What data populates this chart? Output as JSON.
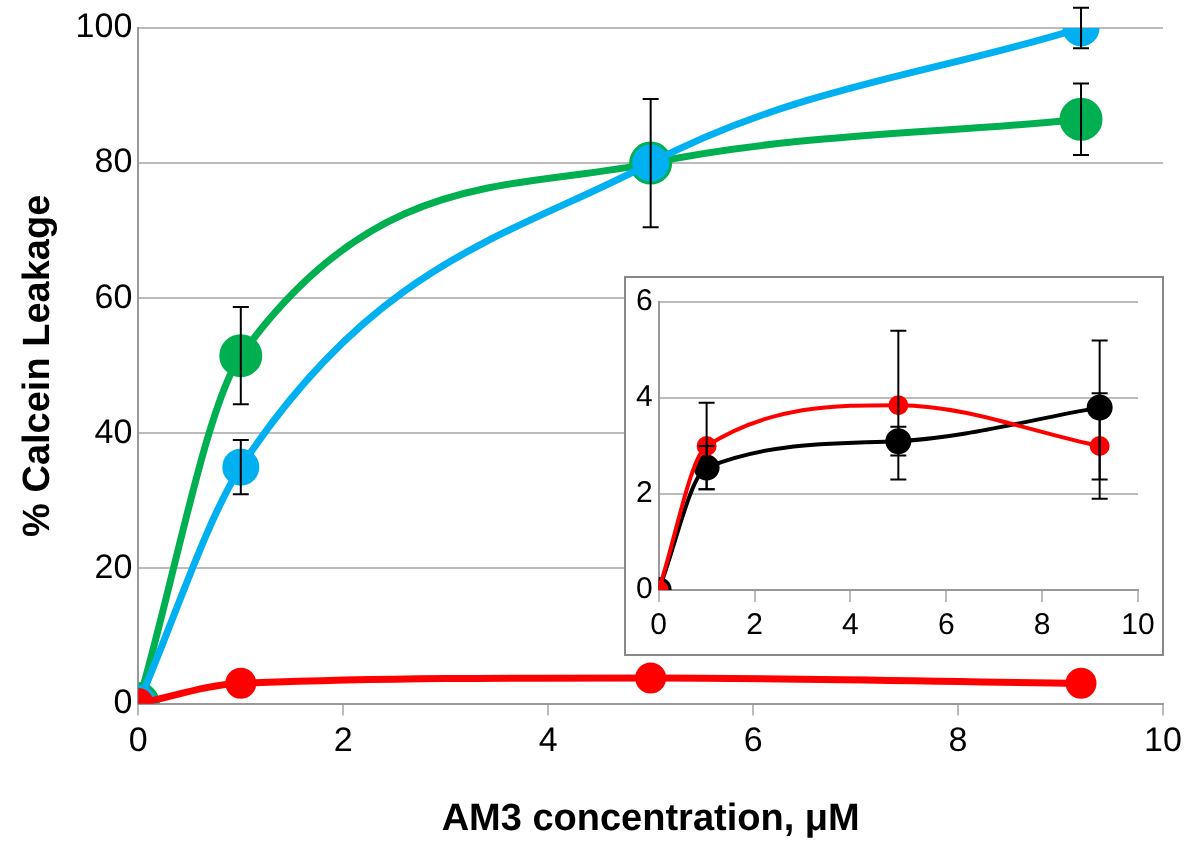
{
  "chart_data": [
    {
      "type": "line",
      "xlabel": "AM3 concentration, μM",
      "ylabel": "% Calcein Leakage",
      "x": [
        0,
        1,
        5,
        9.2
      ],
      "xlim": [
        0,
        10
      ],
      "xticks": [
        0,
        2,
        4,
        6,
        8,
        10
      ],
      "ylim": [
        0,
        100
      ],
      "yticks": [
        0,
        20,
        40,
        60,
        80,
        100
      ],
      "grid": "y",
      "marker": "circle",
      "series": [
        {
          "color": "#00b050",
          "values": [
            0,
            51.5,
            80,
            86.5
          ],
          "errors": [
            null,
            7.2,
            9.5,
            5.3
          ]
        },
        {
          "color": "#00b0f0",
          "values": [
            0,
            35,
            80,
            100
          ],
          "errors": [
            null,
            4,
            null,
            3
          ]
        },
        {
          "color": "#ff0000",
          "values": [
            0,
            3,
            3.8,
            3
          ]
        }
      ]
    },
    {
      "type": "line",
      "x": [
        0,
        1,
        5,
        9.2
      ],
      "xlim": [
        0,
        10
      ],
      "xticks": [
        0,
        2,
        4,
        6,
        8,
        10
      ],
      "ylim": [
        0,
        6
      ],
      "yticks": [
        0,
        2,
        4,
        6
      ],
      "grid": "y",
      "marker": "circle",
      "series": [
        {
          "color": "#000000",
          "values": [
            0,
            2.55,
            3.1,
            3.8
          ],
          "errors": [
            null,
            [
              2.1,
              3
            ],
            [
              2.8,
              3.4
            ],
            [
              2.3,
              5.2
            ]
          ]
        },
        {
          "color": "#ff0000",
          "values": [
            0,
            3,
            3.85,
            3
          ],
          "errors": [
            null,
            [
              2.1,
              3.9
            ],
            [
              2.3,
              5.4
            ],
            [
              1.9,
              4.1
            ]
          ]
        }
      ]
    }
  ]
}
